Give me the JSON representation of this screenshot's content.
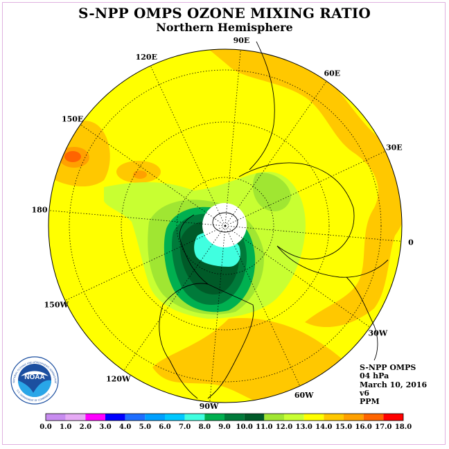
{
  "header": {
    "title": "S-NPP OMPS OZONE MIXING RATIO",
    "subtitle": "Northern Hemisphere"
  },
  "map": {
    "projection": "north-polar-stereographic",
    "longitude_labels": [
      "90E",
      "60E",
      "30E",
      "0",
      "30W",
      "60W",
      "90W",
      "120W",
      "150W",
      "180",
      "150E",
      "120E"
    ],
    "colors": {
      "background_field": "#ffff00",
      "land_outline": "#000000",
      "graticule": "#000000"
    }
  },
  "info_block": {
    "instrument": "S-NPP OMPS",
    "pressure_level": "04 hPa",
    "date": "March 10, 2016",
    "version": "v6",
    "units": "PPM"
  },
  "logo": {
    "text": "NOAA",
    "ring_text": "NATIONAL OCEANIC AND ATMOSPHERIC ADMINISTRATION",
    "ring_text_bottom": "U.S. DEPARTMENT OF COMMERCE"
  },
  "colorbar": {
    "ticks": [
      "0.0",
      "1.0",
      "2.0",
      "3.0",
      "4.0",
      "5.0",
      "6.0",
      "7.0",
      "8.0",
      "9.0",
      "10.0",
      "11.0",
      "12.0",
      "13.0",
      "14.0",
      "15.0",
      "16.0",
      "17.0",
      "18.0"
    ],
    "colors": [
      "#c88cf0",
      "#e6aaf5",
      "#ff00ff",
      "#0000ff",
      "#1e6eff",
      "#00a0ff",
      "#00c8ff",
      "#40ffe0",
      "#00b050",
      "#007a3a",
      "#005a28",
      "#a0e632",
      "#c8ff32",
      "#ffff00",
      "#ffc800",
      "#ffa000",
      "#ff6400",
      "#ff0000",
      "#a0522d"
    ]
  }
}
